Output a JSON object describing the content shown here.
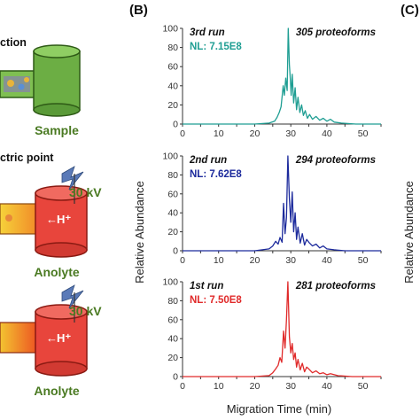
{
  "left_panel": {
    "text_fragments": [
      "ction",
      "ctric point"
    ],
    "labels": {
      "sample": "Sample",
      "voltage_1": "30 kV",
      "anolyte_1": "Anolyte",
      "voltage_2": "30 kV",
      "anolyte_2": "Anolyte",
      "proton": "H⁺",
      "proton_2": "H⁺"
    },
    "colors": {
      "sample_fill": "#6cae44",
      "anolyte_fill": "#e8453c",
      "label_green": "#4a7a22"
    }
  },
  "panel_B_label": "(B)",
  "panel_C_label": "(C)",
  "right_ylabel": "Relative Abundance",
  "chart_data": {
    "type": "line",
    "ylabel": "Relative Abundance",
    "xlabel": "Migration Time (min)",
    "xlim": [
      0,
      55
    ],
    "ylim": [
      0,
      100
    ],
    "xticks": [
      "0",
      "5",
      "10",
      "15",
      "20",
      "25",
      "30",
      "35",
      "40",
      "45",
      "50",
      "55"
    ],
    "yticks": [
      "0",
      "20",
      "40",
      "60",
      "80",
      "100"
    ],
    "series": [
      {
        "run": "3rd run",
        "nl": "NL: 7.15E8",
        "proteoforms": "305 proteoforms",
        "color": "#1f9e93",
        "x": [
          0,
          20,
          24,
          25.5,
          26.2,
          26.8,
          27.3,
          27.9,
          28.2,
          28.6,
          29.0,
          29.3,
          29.6,
          29.9,
          30.1,
          30.4,
          30.8,
          31.2,
          31.6,
          32.0,
          32.5,
          33.0,
          33.5,
          34.0,
          34.6,
          35.2,
          36.0,
          37.0,
          38.0,
          39.0,
          40.0,
          41.0,
          42.0,
          44.0,
          48.0,
          55
        ],
        "y": [
          0,
          0,
          1,
          3,
          7,
          12,
          18,
          40,
          30,
          48,
          35,
          100,
          62,
          45,
          30,
          52,
          22,
          38,
          15,
          28,
          12,
          20,
          9,
          14,
          6,
          10,
          5,
          8,
          4,
          6,
          3,
          5,
          2,
          1,
          0,
          0
        ]
      },
      {
        "run": "2nd run",
        "nl": "NL: 7.62E8",
        "proteoforms": "294 proteoforms",
        "color": "#1c2a9c",
        "x": [
          0,
          20,
          24,
          25.0,
          25.8,
          26.5,
          27.0,
          27.6,
          28.0,
          28.4,
          28.8,
          29.2,
          29.6,
          30.0,
          30.4,
          30.8,
          31.2,
          31.6,
          32.0,
          32.6,
          33.2,
          33.8,
          34.4,
          35.0,
          36.0,
          37.0,
          38.0,
          39.0,
          40.0,
          42.0,
          45.0,
          55
        ],
        "y": [
          0,
          0,
          2,
          5,
          10,
          7,
          14,
          9,
          50,
          18,
          35,
          100,
          55,
          30,
          62,
          20,
          40,
          12,
          25,
          8,
          18,
          6,
          12,
          9,
          5,
          7,
          3,
          5,
          2,
          1,
          0,
          0
        ]
      },
      {
        "run": "1st run",
        "nl": "NL: 7.50E8",
        "proteoforms": "281 proteoforms",
        "color": "#e02a2a",
        "x": [
          0,
          20,
          24,
          25.0,
          25.8,
          26.5,
          27.0,
          27.5,
          28.0,
          28.4,
          28.8,
          29.2,
          29.6,
          30.0,
          30.4,
          30.8,
          31.2,
          31.6,
          32.0,
          32.6,
          33.2,
          33.8,
          34.4,
          35.0,
          36.0,
          37.0,
          38.0,
          39.0,
          40.0,
          41.0,
          43.0,
          47.0,
          55
        ],
        "y": [
          0,
          0,
          1,
          4,
          8,
          12,
          20,
          15,
          48,
          30,
          60,
          100,
          42,
          25,
          35,
          18,
          25,
          10,
          18,
          7,
          14,
          5,
          10,
          8,
          4,
          6,
          3,
          4,
          2,
          3,
          1,
          0,
          0
        ]
      }
    ]
  }
}
